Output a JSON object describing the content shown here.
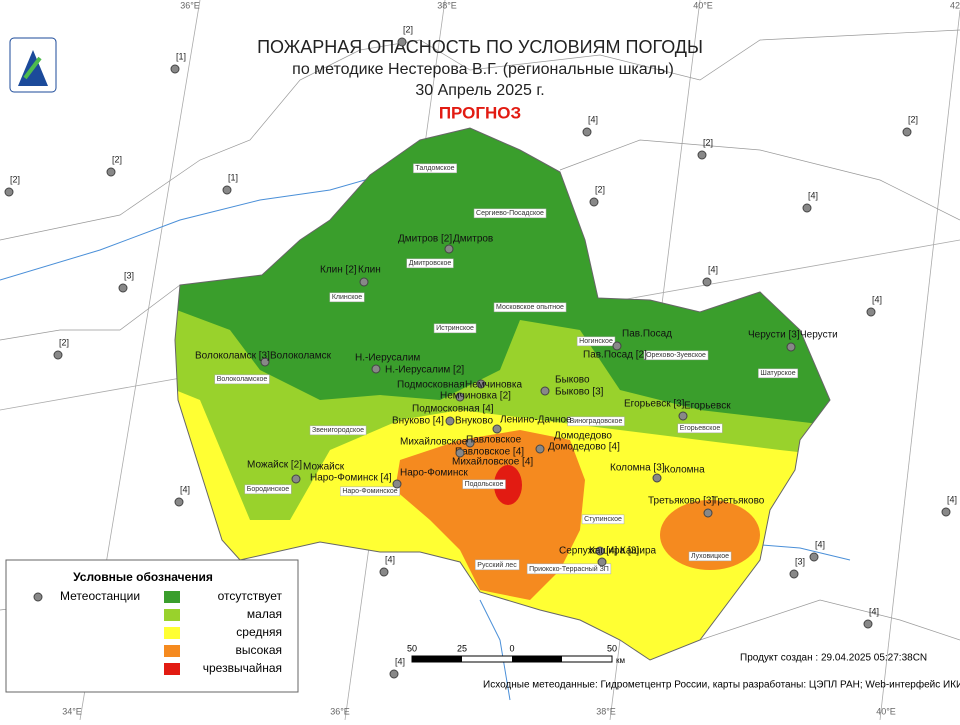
{
  "header": {
    "title": "ПОЖАРНАЯ ОПАСНОСТЬ ПО УСЛОВИЯМ ПОГОДЫ",
    "subtitle": "по методике Нестерова В.Г. (региональные шкалы)",
    "date": "30 Апрель 2025 г.",
    "forecast": "ПРОГНОЗ"
  },
  "graticule": {
    "top": [
      "36°E",
      "38°E",
      "40°E",
      "42"
    ],
    "bottom": [
      "34°E",
      "36°E",
      "38°E",
      "40°E"
    ]
  },
  "stations": [
    {
      "label": "Дмитров [2]",
      "town": "Дмитров"
    },
    {
      "label": "Клин [2]",
      "town": "Клин"
    },
    {
      "label": "Волоколамск [3]",
      "town": "Волоколамск"
    },
    {
      "label": "Н.-Иерусалим [2]",
      "town": "Н.-Иерусалим"
    },
    {
      "label": "Подмосковная [4]",
      "town": "Подмосковная"
    },
    {
      "label": "Немчиновка [2]",
      "town": "Немчиновка"
    },
    {
      "label": "Внуково [4]",
      "town": "Внуково"
    },
    {
      "label": "Ленино-Дачное"
    },
    {
      "label": "Павловское [4]",
      "town": "Павловское"
    },
    {
      "label": "Михайловское [4]",
      "town": "Михайловское"
    },
    {
      "label": "Домодедово [4]",
      "town": "Домодедово"
    },
    {
      "label": "Быково [3]",
      "town": "Быково"
    },
    {
      "label": "Пав.Посад [2]",
      "town": "Пав.Посад"
    },
    {
      "label": "Черусти [3]",
      "town": "Черусти"
    },
    {
      "label": "Егорьевск [3]",
      "town": "Егорьевск"
    },
    {
      "label": "Коломна [3]",
      "town": "Коломна"
    },
    {
      "label": "Третьяково [3]",
      "town": "Третьяково"
    },
    {
      "label": "Серпухов [4]"
    },
    {
      "label": "Кашира [3]",
      "town": "Кашира"
    },
    {
      "label": "Наро-Фоминск [4]",
      "town": "Наро-Фоминск"
    },
    {
      "label": "Можайск [2]",
      "town": "Можайск"
    }
  ],
  "districts": [
    "Талдомское",
    "Сергиево-Посадское",
    "Дмитровское",
    "Клинское",
    "Московское опытное",
    "Истринское",
    "Волоколамское",
    "Ногинское",
    "Орехово-Зуевское",
    "Шатурское",
    "Звенигородское",
    "Виноградовское",
    "Егорьевское",
    "Бородинское",
    "Наро-Фоминское",
    "Подольское",
    "Ступинское",
    "Луховицкое",
    "Русский лес",
    "Приокско-Террасный ЗП"
  ],
  "outside_stations": [
    "[2]",
    "[1]",
    "[2]",
    "[2]",
    "[1]",
    "[3]",
    "[2]",
    "[4]",
    "[2]",
    "[2]",
    "[2]",
    "[4]",
    "[4]",
    "[4]",
    "[4]",
    "[4]",
    "[4]",
    "[4]",
    "[3]",
    "[4]",
    "[4]"
  ],
  "legend": {
    "title": "Условные обозначения",
    "station": "Метеостанции",
    "classes": [
      "отсутствует",
      "малая",
      "средняя",
      "высокая",
      "чрезвычайная"
    ]
  },
  "scale": {
    "labels": [
      "50",
      "25",
      "0",
      "50"
    ],
    "unit": "км"
  },
  "footer": {
    "created": "Продукт создан : 29.04.2025 05:27:38CN",
    "sources": "Исходные метеоданные: Гидрометцентр России, карты разработаны: ЦЭПЛ РАН; Web-интерфейс ИКИ РАН"
  }
}
